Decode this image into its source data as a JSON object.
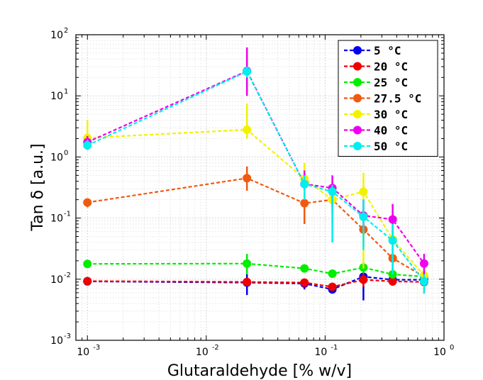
{
  "chart_data": {
    "type": "line",
    "title": "",
    "xlabel": "Glutaraldehyde [% w/v]",
    "ylabel": "Tan δ [a.u.]",
    "x_scale": "log",
    "y_scale": "log",
    "xlim": [
      0.0008,
      1
    ],
    "ylim": [
      0.001,
      100
    ],
    "x_ticks": [
      {
        "value": 0.001,
        "base": "10",
        "exp": "-3"
      },
      {
        "value": 0.01,
        "base": "10",
        "exp": "-2"
      },
      {
        "value": 0.1,
        "base": "10",
        "exp": "-1"
      },
      {
        "value": 1,
        "base": "10",
        "exp": "0"
      }
    ],
    "y_ticks": [
      {
        "value": 0.001,
        "base": "10",
        "exp": "-3"
      },
      {
        "value": 0.01,
        "base": "10",
        "exp": "-2"
      },
      {
        "value": 0.1,
        "base": "10",
        "exp": "-1"
      },
      {
        "value": 1,
        "base": "10",
        "exp": "0"
      },
      {
        "value": 10,
        "base": "10",
        "exp": "1"
      },
      {
        "value": 100,
        "base": "10",
        "exp": "2"
      }
    ],
    "grid": true,
    "legend_position": "top-right",
    "series": [
      {
        "name": "5 °C",
        "color": "#0000ee",
        "x": [
          0.001,
          0.022,
          0.067,
          0.115,
          0.21,
          0.37,
          0.68
        ],
        "y": [
          0.0092,
          0.0088,
          0.0085,
          0.0068,
          0.011,
          0.0098,
          0.0098
        ],
        "err_lo": [
          0.0085,
          0.0055,
          0.0068,
          0.006,
          0.0045,
          0.0082,
          0.0088
        ],
        "err_hi": [
          0.0098,
          0.012,
          0.01,
          0.0076,
          0.012,
          0.011,
          0.011
        ]
      },
      {
        "name": "20 °C",
        "color": "#ee0000",
        "x": [
          0.001,
          0.022,
          0.067,
          0.115,
          0.21,
          0.37,
          0.68
        ],
        "y": [
          0.0093,
          0.009,
          0.0088,
          0.0075,
          0.0098,
          0.0092,
          0.009
        ],
        "err_lo": [
          0.0086,
          0.0078,
          0.0078,
          0.0068,
          0.0075,
          0.0078,
          0.0078
        ],
        "err_hi": [
          0.01,
          0.01,
          0.0098,
          0.0082,
          0.013,
          0.011,
          0.01
        ]
      },
      {
        "name": "25 °C",
        "color": "#00ee00",
        "x": [
          0.001,
          0.022,
          0.067,
          0.115,
          0.21,
          0.37,
          0.68
        ],
        "y": [
          0.0178,
          0.018,
          0.015,
          0.0123,
          0.0155,
          0.012,
          0.011
        ],
        "err_lo": [
          0.0165,
          0.012,
          0.0135,
          0.011,
          0.0125,
          0.0105,
          0.0095
        ],
        "err_hi": [
          0.019,
          0.026,
          0.0165,
          0.0135,
          0.019,
          0.014,
          0.013
        ]
      },
      {
        "name": "27.5 °C",
        "color": "#f05a10",
        "x": [
          0.001,
          0.022,
          0.067,
          0.115,
          0.21,
          0.37,
          0.68
        ],
        "y": [
          0.18,
          0.45,
          0.175,
          0.2,
          0.065,
          0.022,
          0.011
        ],
        "err_lo": [
          0.15,
          0.28,
          0.08,
          0.12,
          0.035,
          0.014,
          0.009
        ],
        "err_hi": [
          0.21,
          0.7,
          0.25,
          0.3,
          0.1,
          0.035,
          0.013
        ]
      },
      {
        "name": "30 °C",
        "color": "#f2f200",
        "x": [
          0.001,
          0.022,
          0.067,
          0.115,
          0.21,
          0.37,
          0.68
        ],
        "y": [
          2.05,
          2.8,
          0.44,
          0.2,
          0.27,
          0.045,
          0.0115
        ],
        "err_lo": [
          1.5,
          2.0,
          0.2,
          0.08,
          0.015,
          0.025,
          0.009
        ],
        "err_hi": [
          4.0,
          7.5,
          0.8,
          0.4,
          0.55,
          0.08,
          0.014
        ]
      },
      {
        "name": "40 °C",
        "color": "#ee00ee",
        "x": [
          0.001,
          0.022,
          0.067,
          0.115,
          0.21,
          0.37,
          0.68
        ],
        "y": [
          1.75,
          25.5,
          0.36,
          0.31,
          0.11,
          0.095,
          0.018
        ],
        "err_lo": [
          1.4,
          10.0,
          0.25,
          0.15,
          0.06,
          0.05,
          0.012
        ],
        "err_hi": [
          2.2,
          62,
          0.6,
          0.5,
          0.2,
          0.17,
          0.026
        ]
      },
      {
        "name": "50 °C",
        "color": "#00eeee",
        "x": [
          0.001,
          0.022,
          0.067,
          0.115,
          0.21,
          0.37,
          0.68
        ],
        "y": [
          1.55,
          25.0,
          0.36,
          0.27,
          0.105,
          0.043,
          0.0092
        ],
        "err_lo": [
          1.3,
          20.0,
          0.2,
          0.04,
          0.03,
          0.012,
          0.0058
        ],
        "err_hi": [
          1.9,
          30.0,
          0.5,
          0.35,
          0.2,
          0.08,
          0.012
        ]
      }
    ]
  }
}
